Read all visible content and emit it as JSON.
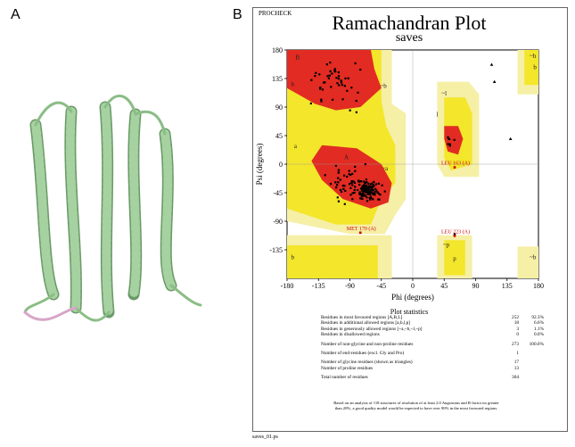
{
  "panel_labels": [
    "A",
    "B"
  ],
  "procheck": "PROCHECK",
  "plot_title": "Ramachandran Plot",
  "plot_subtitle": "saves",
  "chart_data": {
    "type": "scatter",
    "title": "Ramachandran Plot",
    "subtitle": "saves",
    "xlabel": "Phi (degrees)",
    "ylabel": "Psi (degrees)",
    "xlim": [
      -180,
      180
    ],
    "ylim": [
      -180,
      180
    ],
    "xticks": [
      -180,
      -135,
      -90,
      -45,
      0,
      45,
      90,
      135,
      180
    ],
    "yticks": [
      -135,
      -90,
      -45,
      0,
      45,
      90,
      135,
      180
    ],
    "region_labels": [
      {
        "text": "B",
        "phi": -165,
        "psi": 165
      },
      {
        "text": "b",
        "phi": -172,
        "psi": 123
      },
      {
        "text": "~b",
        "phi": -42,
        "psi": 120
      },
      {
        "text": "~l",
        "phi": 45,
        "psi": 108
      },
      {
        "text": "l",
        "phi": 35,
        "psi": 75
      },
      {
        "text": "L",
        "phi": 52,
        "psi": 38
      },
      {
        "text": "a",
        "phi": -168,
        "psi": 25
      },
      {
        "text": "A",
        "phi": -95,
        "psi": 8
      },
      {
        "text": "~a",
        "phi": -40,
        "psi": -10
      },
      {
        "text": "~b",
        "phi": 172,
        "psi": 167
      },
      {
        "text": "b",
        "phi": 175,
        "psi": 150
      },
      {
        "text": "~p",
        "phi": 48,
        "psi": -130
      },
      {
        "text": "p",
        "phi": 60,
        "psi": -152
      },
      {
        "text": "b",
        "phi": -172,
        "psi": -150
      },
      {
        "text": "~b",
        "phi": 172,
        "psi": -150
      }
    ],
    "labeled_residues": [
      {
        "label": "LEU 163 (A)",
        "phi": 60,
        "psi": -5
      },
      {
        "label": "MET 170 (A)",
        "phi": -75,
        "psi": -108
      },
      {
        "label": "LEU 223 (A)",
        "phi": 60,
        "psi": -113
      }
    ],
    "triangle_points": [
      {
        "phi": 113,
        "psi": 157
      },
      {
        "phi": 117,
        "psi": 130
      },
      {
        "phi": 60,
        "psi": -110
      },
      {
        "phi": 140,
        "psi": 40
      }
    ],
    "point_clusters": [
      {
        "center": [
          -65,
          -42
        ],
        "spread": [
          14,
          10
        ],
        "count": 120
      },
      {
        "center": [
          -95,
          -25
        ],
        "spread": [
          20,
          20
        ],
        "count": 45
      },
      {
        "center": [
          -110,
          130
        ],
        "spread": [
          30,
          28
        ],
        "count": 45
      },
      {
        "center": [
          55,
          35
        ],
        "spread": [
          6,
          6
        ],
        "count": 6
      }
    ]
  },
  "stats": {
    "title": "Plot statistics",
    "rows": [
      {
        "label": "Residues in most favoured regions  [A,B,L]",
        "n": "252",
        "pct": "92.3%"
      },
      {
        "label": "Residues in additional allowed regions  [a,b,l,p]",
        "n": "18",
        "pct": "6.6%"
      },
      {
        "label": "Residues in generously allowed regions  [~a,~b,~l,~p]",
        "n": "3",
        "pct": "1.1%"
      },
      {
        "label": "Residues in disallowed regions",
        "n": "0",
        "pct": "0.0%"
      },
      {
        "label": "Number of non-glycine and non-proline residues",
        "n": "273",
        "pct": "100.0%"
      },
      {
        "label": "Number of end-residues (excl. Gly and Pro)",
        "n": "1",
        "pct": ""
      },
      {
        "label": "Number of glycine residues (shown as triangles)",
        "n": "17",
        "pct": ""
      },
      {
        "label": "Number of proline residues",
        "n": "13",
        "pct": ""
      },
      {
        "label": "Total number of residues",
        "n": "304",
        "pct": ""
      }
    ],
    "footnote": "Based on an analysis of 118 structures of resolution of at least 2.0 Angstroms and R-factor no greater than 20%, a good quality model would be expected to have over 90% in the most favoured regions."
  },
  "filename": "saves_01.ps",
  "colors": {
    "core": "#e22b22",
    "allowed": "#f3e62b",
    "generous": "#f6efa6",
    "disallowed": "#ffffff",
    "helix": "#a6d2a2"
  }
}
